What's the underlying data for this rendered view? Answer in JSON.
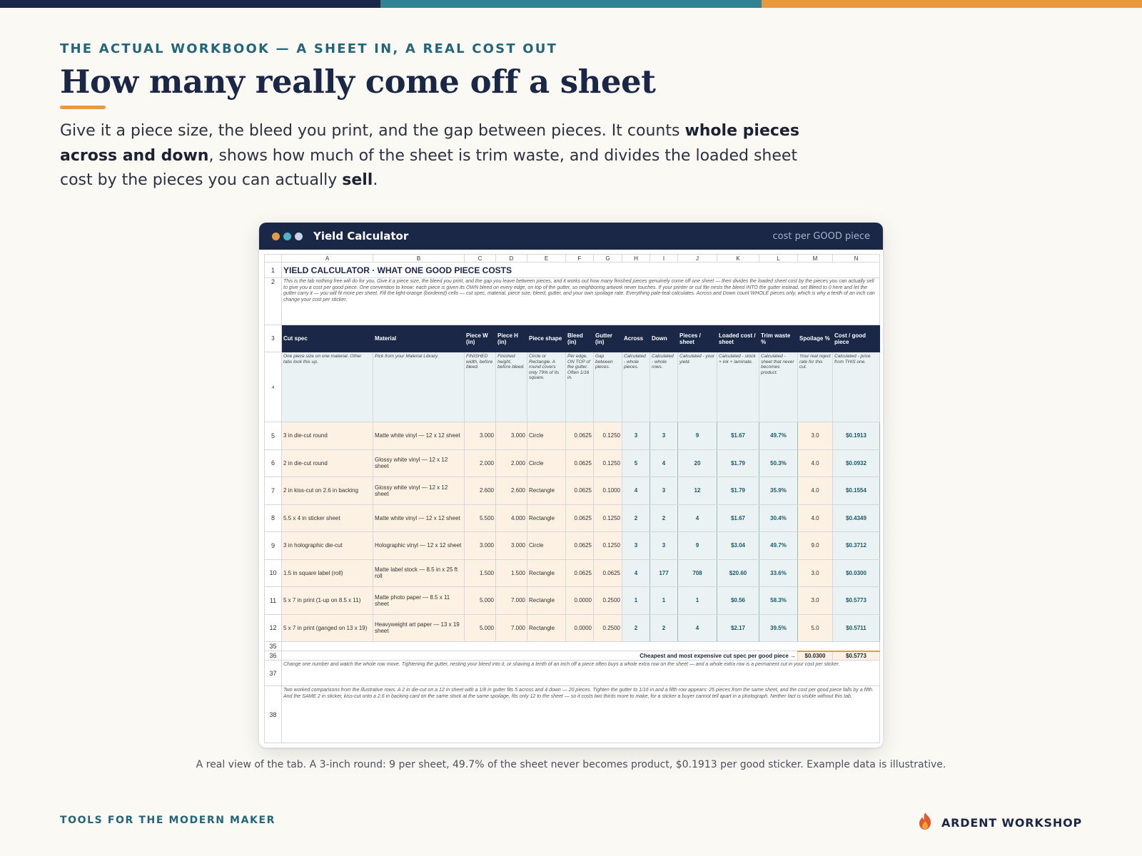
{
  "eyebrow": "THE ACTUAL WORKBOOK — A SHEET IN, A REAL COST OUT",
  "title": "How many really come off a sheet",
  "lede": {
    "p1": "Give it a piece size, the bleed you print, and the gap between pieces. It counts ",
    "b1": "whole pieces across and down",
    "p2": ", shows how much of the sheet is trim waste, and divides the loaded sheet cost by the pieces you can actually ",
    "b2": "sell",
    "p3": "."
  },
  "window": {
    "title": "Yield Calculator",
    "right_label": "cost per GOOD piece"
  },
  "sheet": {
    "columns": [
      "A",
      "B",
      "C",
      "D",
      "E",
      "F",
      "G",
      "H",
      "I",
      "J",
      "K",
      "L",
      "M",
      "N"
    ],
    "title": "YIELD CALCULATOR  ·  WHAT ONE GOOD PIECE COSTS",
    "intro": "This is the tab nothing free will do for you. Give it a piece size, the bleed you print, and the gap you leave between pieces, and it works out how many finished pieces genuinely come off one sheet — then divides the loaded sheet cost by the pieces you can actually sell to give you a cost per good piece. One convention to know: each piece is given its OWN bleed on every edge, on top of the gutter, so neighboring artwork never touches. If your printer or cut file nests the bleed INTO the gutter instead, set Bleed to 0 here and let the gutter carry it — you will fit more per sheet.  Fill the light-orange (bordered) cells — cut spec, material, piece size, bleed, gutter, and your own spoilage rate. Everything pale-teal calculates. Across and Down count WHOLE pieces only, which is why a tenth of an inch can change your cost per sticker.",
    "headers": [
      "Cut spec",
      "Material",
      "Piece W (in)",
      "Piece H (in)",
      "Piece shape",
      "Bleed (in)",
      "Gutter (in)",
      "Across",
      "Down",
      "Pieces / sheet",
      "Loaded cost / sheet",
      "Trim waste %",
      "Spoilage %",
      "Cost / good piece"
    ],
    "notes": [
      "One piece size on one material. Other tabs look this up.",
      "Pick from your Material Library.",
      "FINISHED width, before bleed.",
      "Finished height, before bleed.",
      "Circle or Rectangle. A round covers only 79% of its square.",
      "Per edge, ON TOP of the gutter. Often 1/16 in.",
      "Gap between pieces.",
      "Calculated - whole pieces.",
      "Calculated - whole rows.",
      "Calculated - your yield.",
      "Calculated - stock + ink + laminate.",
      "Calculated - sheet that never becomes product.",
      "Your real reject rate for this cut.",
      "Calculated - price from THIS one."
    ],
    "rows": [
      {
        "n": "5",
        "spec": "3 in die-cut round",
        "material": "Matte white vinyl — 12 x 12 sheet",
        "w": "3.000",
        "h": "3.000",
        "shape": "Circle",
        "bleed": "0.0625",
        "gutter": "0.1250",
        "across": "3",
        "down": "3",
        "pieces": "9",
        "cost": "$1.67",
        "waste": "49.7%",
        "spoil": "3.0",
        "good": "$0.1913"
      },
      {
        "n": "6",
        "spec": "2 in die-cut round",
        "material": "Glossy white vinyl — 12 x 12 sheet",
        "w": "2.000",
        "h": "2.000",
        "shape": "Circle",
        "bleed": "0.0625",
        "gutter": "0.1250",
        "across": "5",
        "down": "4",
        "pieces": "20",
        "cost": "$1.79",
        "waste": "50.3%",
        "spoil": "4.0",
        "good": "$0.0932"
      },
      {
        "n": "7",
        "spec": "2 in kiss-cut on 2.6 in backing",
        "material": "Glossy white vinyl — 12 x 12 sheet",
        "w": "2.600",
        "h": "2.600",
        "shape": "Rectangle",
        "bleed": "0.0625",
        "gutter": "0.1000",
        "across": "4",
        "down": "3",
        "pieces": "12",
        "cost": "$1.79",
        "waste": "35.9%",
        "spoil": "4.0",
        "good": "$0.1554"
      },
      {
        "n": "8",
        "spec": "5.5 x 4 in sticker sheet",
        "material": "Matte white vinyl — 12 x 12 sheet",
        "w": "5.500",
        "h": "4.000",
        "shape": "Rectangle",
        "bleed": "0.0625",
        "gutter": "0.1250",
        "across": "2",
        "down": "2",
        "pieces": "4",
        "cost": "$1.67",
        "waste": "30.4%",
        "spoil": "4.0",
        "good": "$0.4349"
      },
      {
        "n": "9",
        "spec": "3 in holographic die-cut",
        "material": "Holographic vinyl — 12 x 12 sheet",
        "w": "3.000",
        "h": "3.000",
        "shape": "Circle",
        "bleed": "0.0625",
        "gutter": "0.1250",
        "across": "3",
        "down": "3",
        "pieces": "9",
        "cost": "$3.04",
        "waste": "49.7%",
        "spoil": "9.0",
        "good": "$0.3712"
      },
      {
        "n": "10",
        "spec": "1.5 in square label (roll)",
        "material": "Matte label stock — 8.5 in x 25 ft roll",
        "w": "1.500",
        "h": "1.500",
        "shape": "Rectangle",
        "bleed": "0.0625",
        "gutter": "0.0625",
        "across": "4",
        "down": "177",
        "pieces": "708",
        "cost": "$20.60",
        "waste": "33.6%",
        "spoil": "3.0",
        "good": "$0.0300"
      },
      {
        "n": "11",
        "spec": "5 x 7 in print (1-up on 8.5 x 11)",
        "material": "Matte photo paper — 8.5 x 11 sheet",
        "w": "5.000",
        "h": "7.000",
        "shape": "Rectangle",
        "bleed": "0.0000",
        "gutter": "0.2500",
        "across": "1",
        "down": "1",
        "pieces": "1",
        "cost": "$0.56",
        "waste": "58.3%",
        "spoil": "3.0",
        "good": "$0.5773"
      },
      {
        "n": "12",
        "spec": "5 x 7 in print (ganged on 13 x 19)",
        "material": "Heavyweight art paper — 13 x 19 sheet",
        "w": "5.000",
        "h": "7.000",
        "shape": "Rectangle",
        "bleed": "0.0000",
        "gutter": "0.2500",
        "across": "2",
        "down": "2",
        "pieces": "4",
        "cost": "$2.17",
        "waste": "39.5%",
        "spoil": "5.0",
        "good": "$0.5711"
      }
    ],
    "row_numbers": {
      "r1": "1",
      "r2": "2",
      "r3": "3",
      "r4": "4",
      "r35": "35",
      "r36": "36",
      "r37": "37",
      "r38": "38"
    },
    "summary_label": "Cheapest and most expensive cut spec per good piece →",
    "summary_min": "$0.0300",
    "summary_max": "$0.5773",
    "note37": "Change one number and watch the whole row move. Tightening the gutter, nesting your bleed into it, or shaving a tenth of an inch off a piece often buys a whole extra row on the sheet — and a whole extra row is a permanent cut in your cost per sticker.",
    "note38": "Two worked comparisons from the illustrative rows. A 2 in die-cut on a 12 in sheet with a 1/8 in gutter fits 5 across and 4 down — 20 pieces. Tighten the gutter to 1/16 in and a fifth row appears: 25 pieces from the same sheet, and the cost per good piece falls by a fifth. And the SAME 2 in sticker, kiss-cut onto a 2.6 in backing card on the same stock at the same spoilage, fits only 12 to the sheet — so it costs two thirds more to make, for a sticker a buyer cannot tell apart in a photograph. Neither fact is visible without this tab."
  },
  "caption": "A real view of the tab. A 3-inch round: 9 per sheet, 49.7% of the sheet never becomes product, $0.1913 per good sticker. Example data is illustrative.",
  "footer_left": "TOOLS FOR THE MODERN MAKER",
  "brand": {
    "name": "ARDENT WORKSHOP",
    "icon": "flame-icon"
  },
  "colors": {
    "navy": "#1b2747",
    "teal": "#2f8393",
    "orange": "#ea9a3e"
  }
}
